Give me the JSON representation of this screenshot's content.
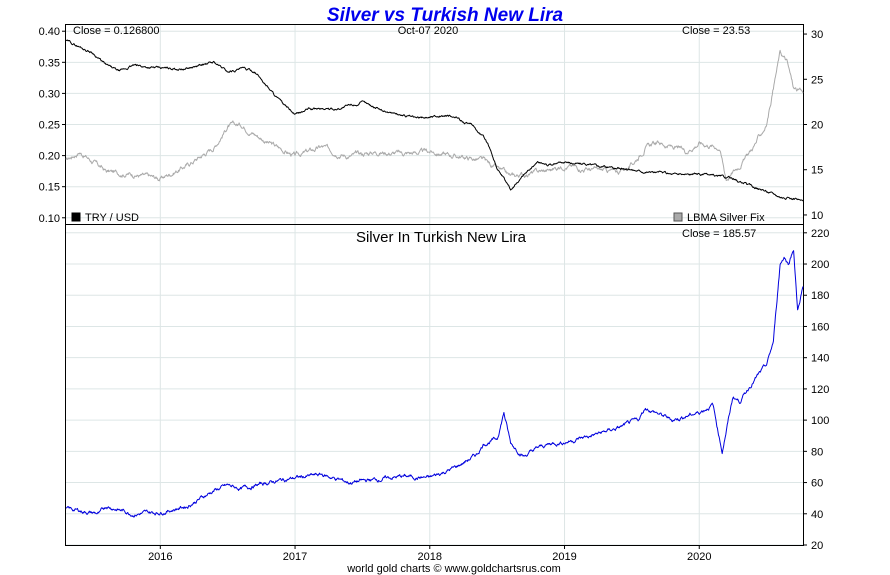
{
  "title": "Silver vs Turkish New Lira",
  "footer": "world gold charts © www.goldchartsrus.com",
  "top_panel": {
    "date": "Oct-07  2020",
    "left_close": "Close = 0.126800",
    "right_close": "Close = 23.53",
    "legend_left": "TRY / USD",
    "legend_right": "LBMA Silver Fix"
  },
  "bottom_panel": {
    "subtitle": "Silver In Turkish New Lira",
    "close": "Close = 185.57"
  },
  "colors": {
    "try_usd": "#000000",
    "silver_usd": "#aaaaaa",
    "silver_try": "#0000dd",
    "title": "#0000ee"
  },
  "chart_data": [
    {
      "type": "line",
      "title": "Silver vs Turkish New Lira",
      "x_range": [
        2015.3,
        2020.77
      ],
      "x_tick_labels": [
        "2016",
        "2017",
        "2018",
        "2019",
        "2020"
      ],
      "x_ticks": [
        2016,
        2017,
        2018,
        2019,
        2020
      ],
      "left_ylim": [
        0.09,
        0.41
      ],
      "left_ticks": [
        "0.10",
        "0.15",
        "0.20",
        "0.25",
        "0.30",
        "0.35",
        "0.40"
      ],
      "right_ylim": [
        9,
        31
      ],
      "right_ticks": [
        "10",
        "15",
        "20",
        "25",
        "30"
      ],
      "series": [
        {
          "name": "TRY / USD",
          "axis": "left",
          "x": [
            2015.3,
            2015.4,
            2015.5,
            2015.6,
            2015.7,
            2015.8,
            2016.0,
            2016.2,
            2016.3,
            2016.4,
            2016.5,
            2016.6,
            2016.7,
            2016.8,
            2016.9,
            2017.0,
            2017.1,
            2017.3,
            2017.5,
            2017.7,
            2017.9,
            2018.1,
            2018.2,
            2018.3,
            2018.4,
            2018.45,
            2018.5,
            2018.6,
            2018.7,
            2018.8,
            2018.9,
            2019.0,
            2019.2,
            2019.4,
            2019.6,
            2019.8,
            2020.0,
            2020.2,
            2020.4,
            2020.6,
            2020.77
          ],
          "values": [
            0.385,
            0.375,
            0.365,
            0.345,
            0.335,
            0.345,
            0.34,
            0.34,
            0.345,
            0.35,
            0.335,
            0.34,
            0.335,
            0.31,
            0.285,
            0.265,
            0.275,
            0.275,
            0.285,
            0.27,
            0.26,
            0.265,
            0.26,
            0.25,
            0.23,
            0.21,
            0.18,
            0.145,
            0.17,
            0.19,
            0.185,
            0.19,
            0.185,
            0.18,
            0.175,
            0.17,
            0.17,
            0.165,
            0.15,
            0.135,
            0.127
          ]
        },
        {
          "name": "LBMA Silver Fix",
          "axis": "right",
          "x": [
            2015.3,
            2015.4,
            2015.6,
            2015.8,
            2016.0,
            2016.2,
            2016.4,
            2016.5,
            2016.6,
            2016.8,
            2017.0,
            2017.2,
            2017.4,
            2017.6,
            2017.8,
            2018.0,
            2018.2,
            2018.4,
            2018.6,
            2018.7,
            2018.9,
            2019.0,
            2019.2,
            2019.4,
            2019.5,
            2019.6,
            2019.7,
            2019.9,
            2020.0,
            2020.15,
            2020.2,
            2020.3,
            2020.4,
            2020.5,
            2020.55,
            2020.6,
            2020.65,
            2020.7,
            2020.77
          ],
          "values": [
            16.0,
            17.0,
            14.8,
            14.5,
            14.0,
            15.5,
            17.5,
            19.8,
            20.0,
            18.0,
            16.5,
            17.5,
            16.5,
            17.0,
            16.8,
            17.0,
            16.5,
            16.0,
            14.2,
            14.5,
            15.0,
            15.5,
            15.0,
            14.8,
            15.5,
            17.5,
            18.0,
            17.0,
            18.0,
            17.5,
            14.0,
            15.5,
            17.5,
            20.0,
            24.0,
            28.0,
            27.0,
            24.0,
            23.5
          ]
        }
      ]
    },
    {
      "type": "line",
      "title": "Silver In Turkish New Lira",
      "x_range": [
        2015.3,
        2020.77
      ],
      "x_tick_labels": [
        "2016",
        "2017",
        "2018",
        "2019",
        "2020"
      ],
      "x_ticks": [
        2016,
        2017,
        2018,
        2019,
        2020
      ],
      "ylim": [
        20,
        225
      ],
      "y_ticks": [
        "20",
        "40",
        "60",
        "80",
        "100",
        "120",
        "140",
        "160",
        "180",
        "200",
        "220"
      ],
      "series": [
        {
          "name": "Silver in TRY",
          "x": [
            2015.3,
            2015.4,
            2015.55,
            2015.6,
            2015.8,
            2016.0,
            2016.2,
            2016.4,
            2016.5,
            2016.6,
            2016.8,
            2017.0,
            2017.2,
            2017.4,
            2017.6,
            2017.8,
            2018.0,
            2018.2,
            2018.35,
            2018.4,
            2018.5,
            2018.55,
            2018.6,
            2018.7,
            2018.8,
            2018.9,
            2019.0,
            2019.2,
            2019.4,
            2019.55,
            2019.6,
            2019.7,
            2019.8,
            2020.0,
            2020.1,
            2020.17,
            2020.25,
            2020.3,
            2020.4,
            2020.5,
            2020.55,
            2020.6,
            2020.63,
            2020.66,
            2020.7,
            2020.73,
            2020.77
          ],
          "values": [
            43,
            42,
            40,
            45,
            40,
            41,
            45,
            55,
            58,
            56,
            60,
            63,
            65,
            60,
            62,
            64,
            63,
            70,
            78,
            85,
            88,
            105,
            85,
            77,
            82,
            85,
            86,
            90,
            95,
            100,
            108,
            104,
            100,
            105,
            110,
            80,
            115,
            112,
            125,
            135,
            150,
            200,
            205,
            200,
            210,
            170,
            185.57
          ]
        }
      ]
    }
  ]
}
